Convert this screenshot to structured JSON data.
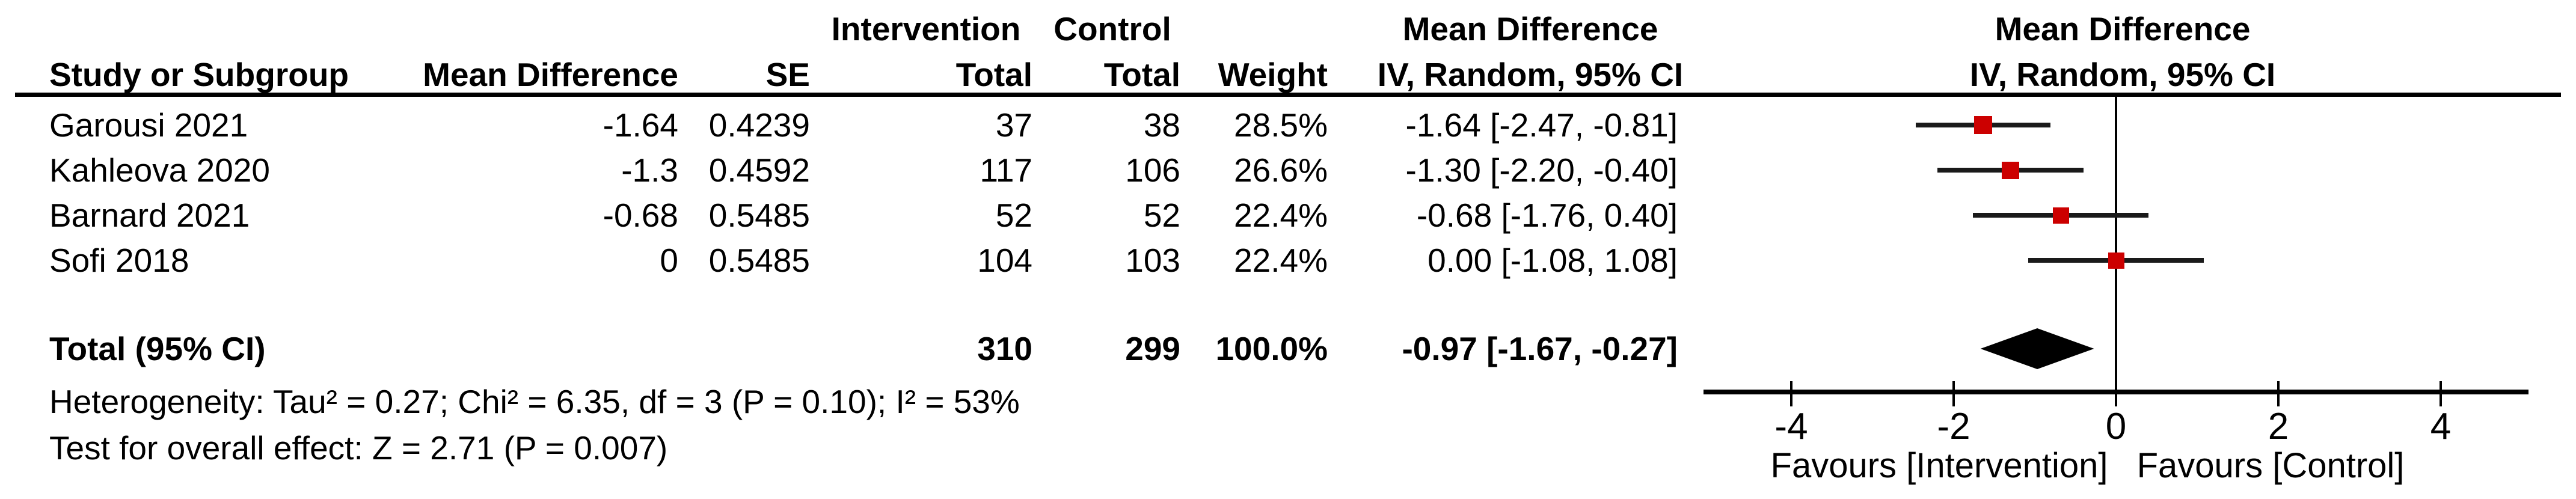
{
  "table": {
    "headers": {
      "row1": {
        "intervention": "Intervention",
        "control": "Control",
        "mean_difference_text": "Mean Difference",
        "mean_difference_plot": "Mean Difference"
      },
      "row2": {
        "study": "Study or Subgroup",
        "mean_difference": "Mean Difference",
        "se": "SE",
        "total_intervention": "Total",
        "total_control": "Total",
        "weight": "Weight",
        "iv_text": "IV, Random, 95% CI",
        "iv_plot": "IV, Random, 95% CI"
      }
    },
    "rows": [
      {
        "study": "Garousi 2021",
        "md": "-1.64",
        "se": "0.4239",
        "ti": "37",
        "tc": "38",
        "weight": "28.5%",
        "ci": "-1.64 [-2.47, -0.81]"
      },
      {
        "study": "Kahleova 2020",
        "md": "-1.3",
        "se": "0.4592",
        "ti": "117",
        "tc": "106",
        "weight": "26.6%",
        "ci": "-1.30 [-2.20, -0.40]"
      },
      {
        "study": "Barnard 2021",
        "md": "-0.68",
        "se": "0.5485",
        "ti": "52",
        "tc": "52",
        "weight": "22.4%",
        "ci": "-0.68 [-1.76, 0.40]"
      },
      {
        "study": "Sofi 2018",
        "md": "0",
        "se": "0.5485",
        "ti": "104",
        "tc": "103",
        "weight": "22.4%",
        "ci": "0.00 [-1.08, 1.08]"
      }
    ],
    "total": {
      "label": "Total (95% CI)",
      "ti": "310",
      "tc": "299",
      "weight": "100.0%",
      "ci": "-0.97 [-1.67, -0.27]"
    },
    "footnotes": {
      "heterogeneity": "Heterogeneity: Tau² = 0.27; Chi² = 6.35, df = 3 (P = 0.10); I² = 53%",
      "overall": "Test for overall effect: Z = 2.71 (P = 0.007)"
    }
  },
  "chart_data": {
    "type": "forest",
    "effect_measure": "Mean Difference — IV, Random, 95% CI",
    "studies": [
      {
        "name": "Garousi 2021",
        "estimate": -1.64,
        "ci_low": -2.47,
        "ci_high": -0.81,
        "weight_pct": 28.5
      },
      {
        "name": "Kahleova 2020",
        "estimate": -1.3,
        "ci_low": -2.2,
        "ci_high": -0.4,
        "weight_pct": 26.6
      },
      {
        "name": "Barnard 2021",
        "estimate": -0.68,
        "ci_low": -1.76,
        "ci_high": 0.4,
        "weight_pct": 22.4
      },
      {
        "name": "Sofi 2018",
        "estimate": 0.0,
        "ci_low": -1.08,
        "ci_high": 1.08,
        "weight_pct": 22.4
      }
    ],
    "total": {
      "estimate": -0.97,
      "ci_low": -1.67,
      "ci_high": -0.27
    },
    "totals": {
      "intervention_n": 310,
      "control_n": 299,
      "weight_pct": 100.0
    },
    "heterogeneity": {
      "tau2": 0.27,
      "chi2": 6.35,
      "df": 3,
      "p": 0.1,
      "i2_pct": 53
    },
    "overall_effect": {
      "z": 2.71,
      "p": 0.007
    },
    "axis": {
      "ticks": [
        -4,
        -2,
        0,
        2,
        4
      ],
      "xlim": [
        -5.1,
        5.1
      ],
      "grid": false
    },
    "xlabel_left": "Favours [Intervention]",
    "xlabel_right": "Favours [Control]",
    "marker_color": "#CC0000",
    "ci_line_color": "#1a1a1a",
    "axis_color": "#000000"
  }
}
